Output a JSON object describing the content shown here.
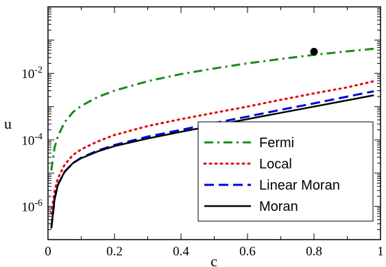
{
  "chart_data": {
    "type": "line",
    "title": "",
    "xlabel": "c",
    "ylabel": "u",
    "xlim": [
      0,
      1
    ],
    "ylim": [
      1e-07,
      1
    ],
    "yscale": "log",
    "grid": false,
    "legend_position": "bottom-right",
    "x_ticks": [
      {
        "value": 0,
        "label": "0"
      },
      {
        "value": 0.2,
        "label": "0.2"
      },
      {
        "value": 0.4,
        "label": "0.4"
      },
      {
        "value": 0.6,
        "label": "0.6"
      },
      {
        "value": 0.8,
        "label": "0.8"
      },
      {
        "value": 1,
        "label": "1"
      }
    ],
    "y_ticks": [
      {
        "value": 1e-06,
        "base": "10",
        "exp": "-6"
      },
      {
        "value": 0.0001,
        "base": "10",
        "exp": "-4"
      },
      {
        "value": 0.01,
        "base": "10",
        "exp": "-2"
      }
    ],
    "x": [
      0.01,
      0.02,
      0.03,
      0.05,
      0.075,
      0.1,
      0.15,
      0.2,
      0.3,
      0.4,
      0.5,
      0.6,
      0.7,
      0.8,
      0.9,
      0.98
    ],
    "series": [
      {
        "name": "Fermi",
        "color": "#1a8a1a",
        "dash": "dashdot",
        "values": [
          1.2e-05,
          6e-05,
          0.00013,
          0.00034,
          0.00068,
          0.00105,
          0.00195,
          0.003,
          0.0058,
          0.0095,
          0.014,
          0.02,
          0.027,
          0.036,
          0.046,
          0.055
        ]
      },
      {
        "name": "Local",
        "color": "#e60000",
        "dash": "dotted",
        "values": [
          6e-07,
          3e-06,
          7e-06,
          1.8e-05,
          3.5e-05,
          5.2e-05,
          9e-05,
          0.00014,
          0.00026,
          0.00042,
          0.00065,
          0.001,
          0.0016,
          0.0025,
          0.0038,
          0.0058
        ]
      },
      {
        "name": "Linear Moran",
        "color": "#0000dd",
        "dash": "dashed",
        "values": [
          2.2e-07,
          1.7e-06,
          4.5e-06,
          1.1e-05,
          2e-05,
          2.9e-05,
          4.8e-05,
          7e-05,
          0.000125,
          0.0002,
          0.00032,
          0.0005,
          0.0008,
          0.00125,
          0.002,
          0.0029
        ]
      },
      {
        "name": "Moran",
        "color": "#000000",
        "dash": "solid",
        "values": [
          2.2e-07,
          1.7e-06,
          4.5e-06,
          1.1e-05,
          2e-05,
          2.8e-05,
          4.5e-05,
          6.5e-05,
          0.00011,
          0.000175,
          0.00027,
          0.00042,
          0.00065,
          0.001,
          0.00155,
          0.0022
        ]
      }
    ],
    "annotations": [
      {
        "type": "point",
        "x": 0.8,
        "y": 0.045,
        "color": "#000000"
      }
    ]
  }
}
